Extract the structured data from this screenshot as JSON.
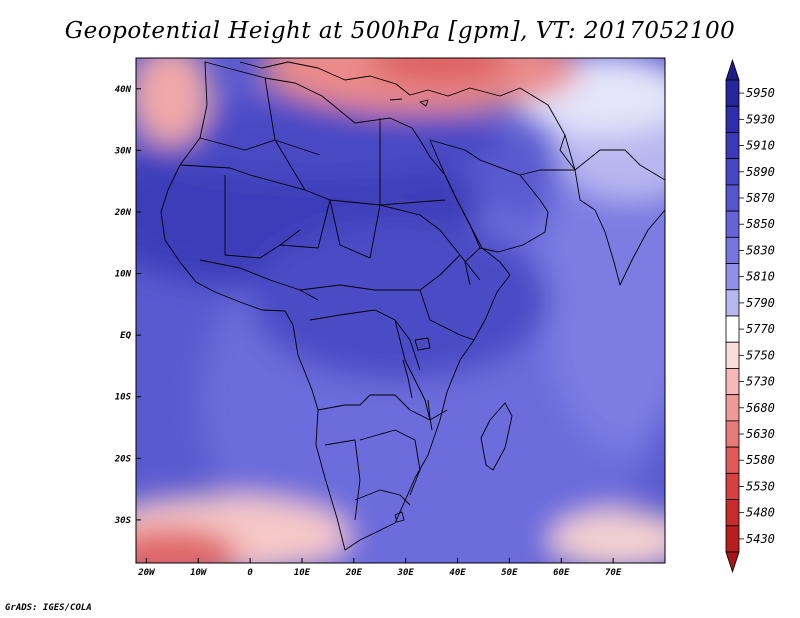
{
  "title": "Geopotential Height at 500hPa [gpm], VT: 2017052100",
  "credit": "GrADS: IGES/COLA",
  "map": {
    "lon_range": [
      -22,
      80
    ],
    "lat_range": [
      -37,
      45
    ],
    "x_ticks": [
      "20W",
      "10W",
      "0",
      "10E",
      "20E",
      "30E",
      "40E",
      "50E",
      "60E",
      "70E"
    ],
    "x_tick_values": [
      -20,
      -10,
      0,
      10,
      20,
      30,
      40,
      50,
      60,
      70
    ],
    "y_ticks": [
      "40N",
      "30N",
      "20N",
      "10N",
      "EQ",
      "10S",
      "20S",
      "30S"
    ],
    "y_tick_values": [
      40,
      30,
      20,
      10,
      0,
      -10,
      -20,
      -30
    ],
    "field_regions": [
      {
        "region": "northern-subtropics",
        "level": 5890
      },
      {
        "region": "tropical-africa",
        "level": 5870
      },
      {
        "region": "southern-africa",
        "level": 5850
      },
      {
        "region": "indian-ocean",
        "level": 5830
      },
      {
        "region": "mediterranean-trough",
        "level": 5680
      },
      {
        "region": "south-atlantic-trough",
        "level": 5580
      }
    ]
  },
  "colorbar": {
    "labels": [
      "5950",
      "5930",
      "5910",
      "5890",
      "5870",
      "5850",
      "5830",
      "5810",
      "5790",
      "5770",
      "5750",
      "5730",
      "5680",
      "5630",
      "5580",
      "5530",
      "5480",
      "5430"
    ],
    "colors": [
      "#26269c",
      "#2e2eac",
      "#3a3ab9",
      "#4747c4",
      "#5555ce",
      "#6464d8",
      "#7676e0",
      "#9090e8",
      "#b7b7f0",
      "#ffffff",
      "#fbdcdc",
      "#f7b8b8",
      "#f09999",
      "#e87a7a",
      "#e05a5a",
      "#d54040",
      "#c72b2b",
      "#b81e1e"
    ],
    "top_arrow_color": "#1c1c8a",
    "bottom_arrow_color": "#a51515"
  }
}
